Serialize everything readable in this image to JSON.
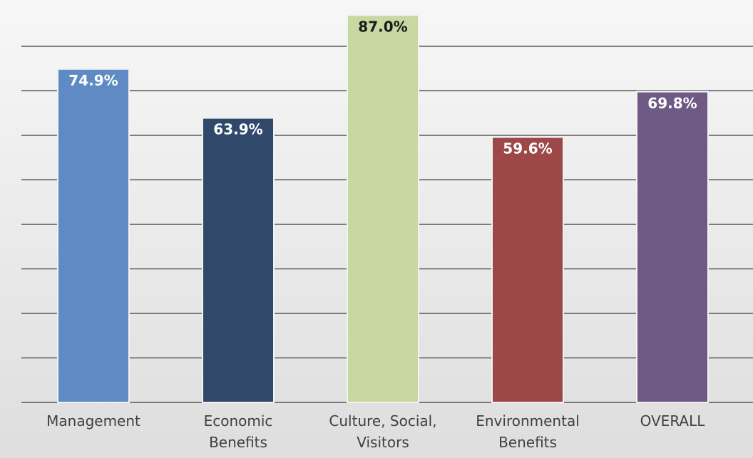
{
  "chart_data": {
    "type": "bar",
    "categories": [
      [
        "Management"
      ],
      [
        "Economic",
        "Benefits"
      ],
      [
        "Culture, Social,",
        "Visitors"
      ],
      [
        "Environmental",
        "Benefits"
      ],
      [
        "OVERALL"
      ]
    ],
    "values": [
      74.9,
      63.9,
      87.0,
      59.6,
      69.8
    ],
    "value_labels": [
      "74.9%",
      "63.9%",
      "87.0%",
      "59.6%",
      "69.8%"
    ],
    "bar_colors": [
      "#5f8ac4",
      "#30496b",
      "#c7d8a1",
      "#9e4748",
      "#6f5a85"
    ],
    "label_colors": [
      "#ffffff",
      "#ffffff",
      "#1a1a1a",
      "#ffffff",
      "#ffffff"
    ],
    "ylim": [
      0,
      90
    ],
    "gridline_step": 10,
    "grid": true,
    "legend": "none"
  }
}
